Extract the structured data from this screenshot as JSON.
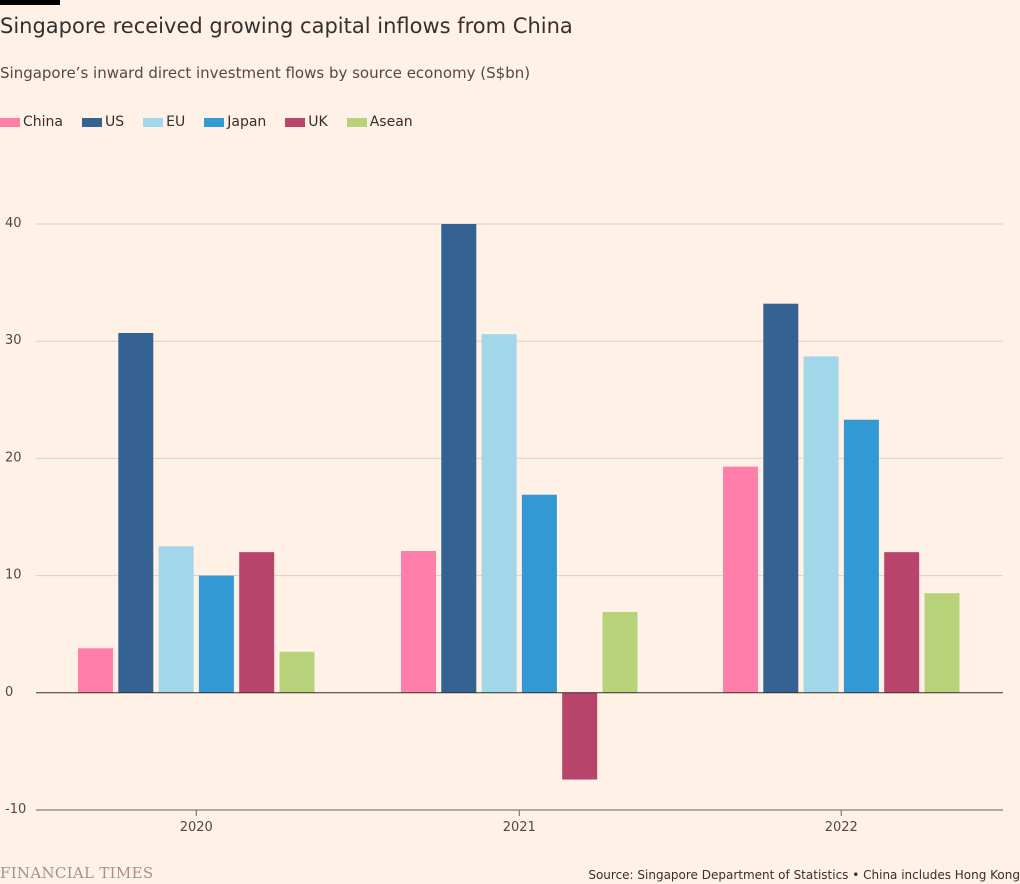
{
  "header": {
    "title": "Singapore received growing capital inflows from China",
    "subtitle": "Singapore’s inward direct investment flows by source economy (S$bn)"
  },
  "footer": {
    "brand": "FINANCIAL TIMES",
    "source": "Source: Singapore Department of Statistics • China includes Hong Kong"
  },
  "chart_data": {
    "type": "bar",
    "categories": [
      "2020",
      "2021",
      "2022"
    ],
    "series": [
      {
        "name": "China",
        "color": "#FF7FAA",
        "values": [
          3.8,
          12.1,
          19.3
        ]
      },
      {
        "name": "US",
        "color": "#336293",
        "values": [
          30.7,
          40.0,
          33.2
        ]
      },
      {
        "name": "EU",
        "color": "#A2D6E9",
        "values": [
          12.5,
          30.6,
          28.7
        ]
      },
      {
        "name": "Japan",
        "color": "#3399D2",
        "values": [
          10.0,
          16.9,
          23.3
        ]
      },
      {
        "name": "UK",
        "color": "#B8446B",
        "values": [
          12.0,
          -7.4,
          12.0
        ]
      },
      {
        "name": "Asean",
        "color": "#B8D27A",
        "values": [
          3.5,
          6.9,
          8.5
        ]
      }
    ],
    "ylim": [
      -10,
      40
    ],
    "yticks": [
      -10,
      0,
      10,
      20,
      30,
      40
    ],
    "grid": true,
    "legend_position": "top-left"
  }
}
